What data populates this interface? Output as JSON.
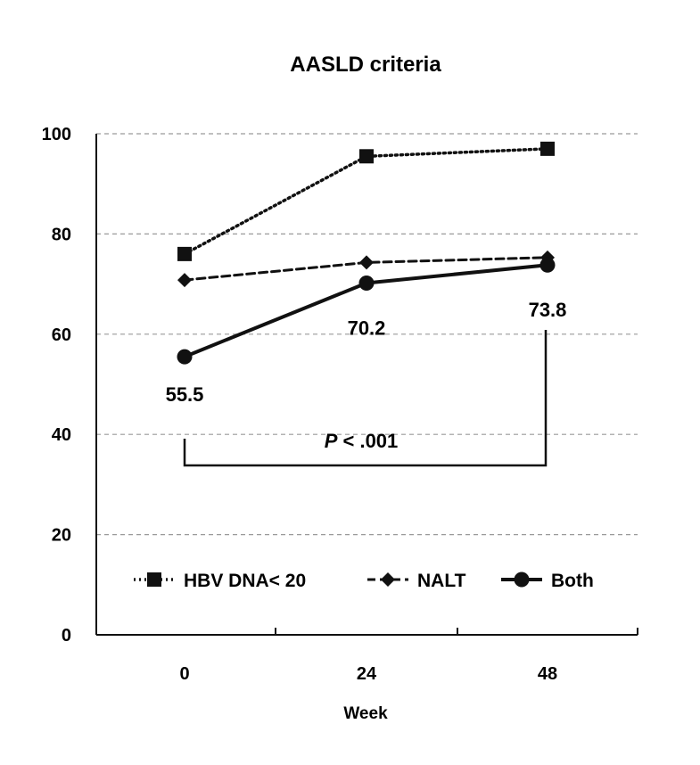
{
  "chart_data": {
    "type": "line",
    "title": "AASLD criteria",
    "xlabel": "Week",
    "ylabel": "",
    "categories": [
      "0",
      "24",
      "48"
    ],
    "ylim": [
      0,
      100
    ],
    "yticks": [
      "0",
      "20",
      "40",
      "60",
      "80",
      "100"
    ],
    "grid": true,
    "legend_position": "bottom-inside",
    "series": [
      {
        "name": "HBV DNA< 20",
        "values": [
          76,
          95.5,
          97
        ],
        "line_style": "dotted",
        "marker": "square",
        "color": "#111111"
      },
      {
        "name": "NALT",
        "values": [
          70.8,
          74.3,
          75.3
        ],
        "line_style": "dashed",
        "marker": "diamond",
        "color": "#111111"
      },
      {
        "name": "Both",
        "values": [
          55.5,
          70.2,
          73.8
        ],
        "line_style": "solid",
        "marker": "circle",
        "color": "#111111"
      }
    ],
    "data_labels": [
      "55.5",
      "70.2",
      "73.8"
    ],
    "annotation": {
      "italic_part": "P",
      "rest": " < .001"
    }
  }
}
